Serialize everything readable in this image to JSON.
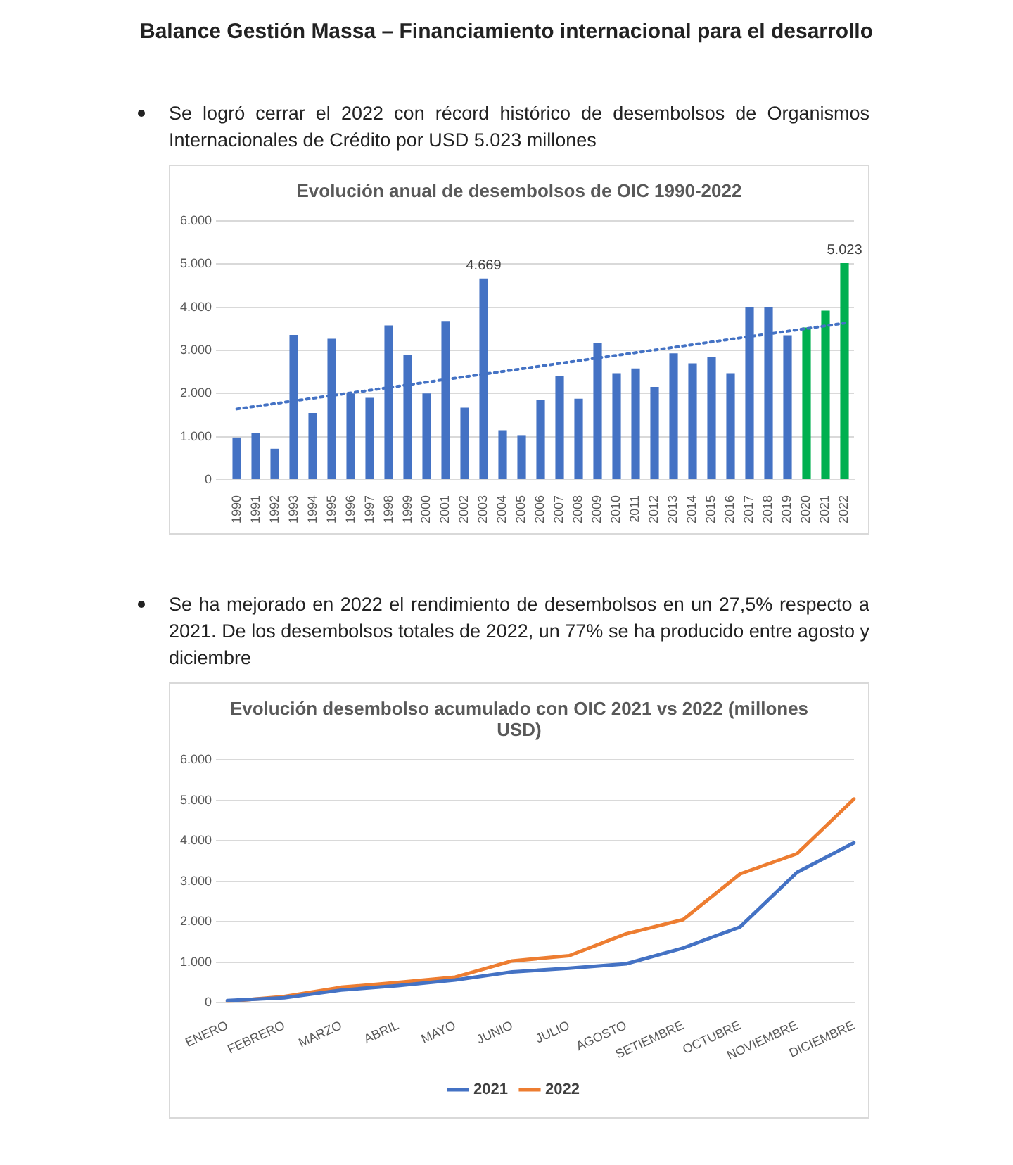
{
  "chart_data": [
    {
      "type": "bar",
      "title": "Evolución anual de desembolsos de OIC 1990-2022",
      "annotations": [
        "Balance Gestión Massa – Financiamiento internacional para el desarrollo",
        "Se logró cerrar el 2022 con récord histórico de desembolsos de Organismos Internacionales de Crédito por USD 5.023 millones"
      ],
      "categories": [
        "1990",
        "1991",
        "1992",
        "1993",
        "1994",
        "1995",
        "1996",
        "1997",
        "1998",
        "1999",
        "2000",
        "2001",
        "2002",
        "2003",
        "2004",
        "2005",
        "2006",
        "2007",
        "2008",
        "2009",
        "2010",
        "2011",
        "2012",
        "2013",
        "2014",
        "2015",
        "2016",
        "2017",
        "2018",
        "2019",
        "2020",
        "2021",
        "2022"
      ],
      "series": [
        {
          "values": [
            980,
            1090,
            720,
            3360,
            1550,
            3270,
            2000,
            1900,
            3580,
            2900,
            2000,
            3680,
            1670,
            4669,
            1150,
            1020,
            1850,
            2400,
            1880,
            3180,
            2470,
            2580,
            2150,
            2930,
            2700,
            2850,
            2470,
            4010,
            4010,
            3350,
            3530,
            3920,
            5023
          ],
          "colors": [
            "#4472c4",
            "#4472c4",
            "#4472c4",
            "#4472c4",
            "#4472c4",
            "#4472c4",
            "#4472c4",
            "#4472c4",
            "#4472c4",
            "#4472c4",
            "#4472c4",
            "#4472c4",
            "#4472c4",
            "#4472c4",
            "#4472c4",
            "#4472c4",
            "#4472c4",
            "#4472c4",
            "#4472c4",
            "#4472c4",
            "#4472c4",
            "#4472c4",
            "#4472c4",
            "#4472c4",
            "#4472c4",
            "#4472c4",
            "#4472c4",
            "#4472c4",
            "#4472c4",
            "#4472c4",
            "#00b050",
            "#00b050",
            "#00b050"
          ],
          "value_labels": [
            null,
            null,
            null,
            null,
            null,
            null,
            null,
            null,
            null,
            null,
            null,
            null,
            null,
            "4.669",
            null,
            null,
            null,
            null,
            null,
            null,
            null,
            null,
            null,
            null,
            null,
            null,
            null,
            null,
            null,
            null,
            null,
            null,
            "5.023"
          ]
        },
        {
          "type": "line",
          "values": [
            1640,
            null,
            null,
            null,
            null,
            null,
            null,
            null,
            null,
            null,
            null,
            null,
            null,
            null,
            null,
            null,
            null,
            null,
            null,
            null,
            null,
            null,
            null,
            null,
            null,
            null,
            null,
            null,
            null,
            null,
            null,
            null,
            3630
          ],
          "color": "#4472c4",
          "line_style": "dotted"
        }
      ],
      "ylim": [
        0,
        6000
      ],
      "yticks": [
        0,
        {
          "value": 1000,
          "label": "1.000"
        },
        {
          "value": 2000,
          "label": "2.000"
        },
        {
          "value": 3000,
          "label": "3.000"
        },
        {
          "value": 4000,
          "label": "4.000"
        },
        {
          "value": 5000,
          "label": "5.000"
        },
        {
          "value": 6000,
          "label": "6.000"
        }
      ],
      "grid": "y",
      "legend": false,
      "marker": "none"
    },
    {
      "type": "line",
      "title": "Evolución desembolso acumulado con OIC 2021 vs 2022 (millones USD)",
      "annotations": [
        "Se ha mejorado en 2022 el rendimiento de desembolsos en un 27,5% respecto a 2021. De los desembolsos totales de 2022, un 77% se ha producido entre agosto y diciembre"
      ],
      "categories": [
        "ENERO",
        "FEBRERO",
        "MARZO",
        "ABRIL",
        "MAYO",
        "JUNIO",
        "JULIO",
        "AGOSTO",
        "SETIEMBRE",
        "OCTUBRE",
        "NOVIEMBRE",
        "DICIEMBRE"
      ],
      "series": [
        {
          "name": "2021",
          "color": "#4472c4",
          "values": [
            50,
            120,
            310,
            420,
            560,
            760,
            850,
            960,
            1350,
            1870,
            3220,
            3950
          ]
        },
        {
          "name": "2022",
          "color": "#ed7d31",
          "values": [
            30,
            150,
            380,
            500,
            630,
            1030,
            1160,
            1700,
            2050,
            3180,
            3680,
            5030
          ]
        }
      ],
      "ylim": [
        0,
        6000
      ],
      "yticks": [
        0,
        {
          "value": 1000,
          "label": "1.000"
        },
        {
          "value": 2000,
          "label": "2.000"
        },
        {
          "value": 3000,
          "label": "3.000"
        },
        {
          "value": 4000,
          "label": "4.000"
        },
        {
          "value": 5000,
          "label": "5.000"
        },
        {
          "value": 6000,
          "label": "6.000"
        }
      ],
      "grid": "y",
      "legend": "bottom",
      "marker": "none",
      "line_style": "solid"
    }
  ]
}
